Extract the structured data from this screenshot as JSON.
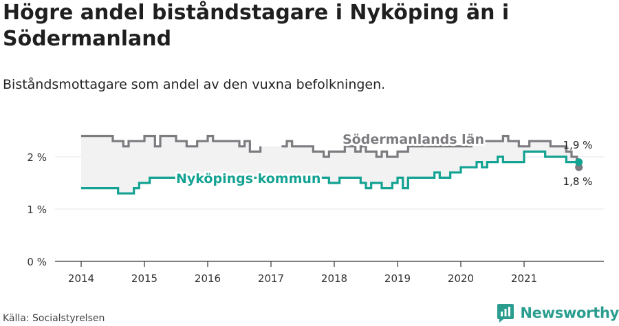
{
  "header": {
    "title": "Högre andel biståndstagare i Nyköping än i Södermanland",
    "subtitle": "Biståndsmottagare som andel av den vuxna befolkningen."
  },
  "footer": {
    "source": "Källa: Socialstyrelsen",
    "brand": "Newsworthy",
    "brand_icon": "newsworthy-logo-icon"
  },
  "colors": {
    "county": "#7d7b80",
    "municipality": "#14a292",
    "band": "#f2f2f3",
    "grid": "#e6e6e6",
    "axis": "#333333"
  },
  "chart_data": {
    "type": "line",
    "x_start": "2014-01",
    "y_ticks": [
      {
        "value": 0,
        "label": "0 %"
      },
      {
        "value": 1,
        "label": "1 %"
      },
      {
        "value": 2,
        "label": "2 %"
      }
    ],
    "x_ticks": [
      "2014",
      "2015",
      "2016",
      "2017",
      "2018",
      "2019",
      "2020",
      "2021"
    ],
    "ylim": [
      0,
      2.6
    ],
    "grid": true,
    "series": [
      {
        "name": "Södermanlands län",
        "key": "county",
        "end_label": "1,8 %",
        "values": [
          2.4,
          2.4,
          2.4,
          2.4,
          2.4,
          2.4,
          2.3,
          2.3,
          2.2,
          2.3,
          2.3,
          2.3,
          2.4,
          2.4,
          2.2,
          2.4,
          2.4,
          2.4,
          2.3,
          2.3,
          2.2,
          2.2,
          2.3,
          2.3,
          2.4,
          2.3,
          2.3,
          2.3,
          2.3,
          2.3,
          2.2,
          2.3,
          2.1,
          2.1,
          2.2,
          null,
          null,
          null,
          2.2,
          2.3,
          2.2,
          2.2,
          2.2,
          2.2,
          2.1,
          2.1,
          2.0,
          2.1,
          2.1,
          2.1,
          2.2,
          2.2,
          2.1,
          2.2,
          2.1,
          2.1,
          2.0,
          2.1,
          2.0,
          2.0,
          2.1,
          2.1,
          2.2,
          2.2,
          2.2,
          2.2,
          2.2,
          2.2,
          2.2,
          2.2,
          2.2,
          2.2,
          2.2,
          2.2,
          2.3,
          2.3,
          2.3,
          2.3,
          2.3,
          2.3,
          2.4,
          2.3,
          2.3,
          2.2,
          2.2,
          2.3,
          2.3,
          2.3,
          2.3,
          2.2,
          2.2,
          2.2,
          2.1,
          2.0,
          1.8
        ]
      },
      {
        "name": "Nyköpings kommun",
        "key": "municipality",
        "end_label": "1,9 %",
        "values": [
          1.4,
          1.4,
          1.4,
          1.4,
          1.4,
          1.4,
          1.4,
          1.3,
          1.3,
          1.3,
          1.4,
          1.5,
          1.5,
          1.6,
          1.6,
          1.6,
          1.6,
          1.6,
          1.6,
          1.6,
          1.6,
          1.6,
          1.6,
          1.6,
          1.6,
          1.6,
          1.6,
          1.6,
          1.6,
          1.6,
          1.6,
          1.6,
          1.6,
          1.6,
          1.6,
          1.6,
          1.6,
          1.6,
          1.6,
          1.6,
          1.6,
          1.6,
          1.6,
          1.6,
          1.6,
          1.6,
          1.6,
          1.5,
          1.5,
          1.6,
          1.6,
          1.6,
          1.6,
          1.5,
          1.4,
          1.5,
          1.5,
          1.4,
          1.4,
          1.5,
          1.6,
          1.4,
          1.6,
          1.6,
          1.6,
          1.6,
          1.6,
          1.7,
          1.6,
          1.6,
          1.7,
          1.7,
          1.8,
          1.8,
          1.8,
          1.9,
          1.8,
          1.9,
          1.9,
          2.0,
          1.9,
          1.9,
          1.9,
          1.9,
          2.1,
          2.1,
          2.1,
          2.1,
          2.0,
          2.0,
          2.0,
          2.0,
          1.9,
          1.9,
          1.9
        ]
      }
    ]
  }
}
